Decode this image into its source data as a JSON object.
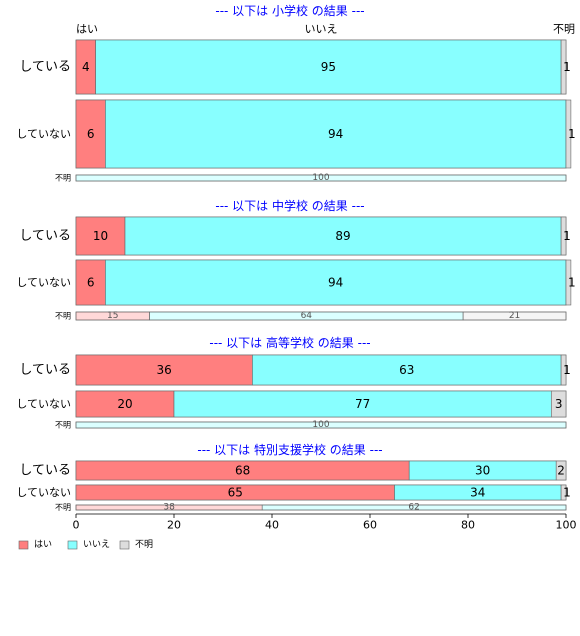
{
  "chart_data": {
    "type": "bar",
    "orientation": "horizontal",
    "stacked": "percent",
    "colors": {
      "yes": "#FF7F7F",
      "no": "#88FFFF",
      "unknown": "#DDDDDD",
      "title": "#0000FF"
    },
    "top_labels": [
      "はい",
      "いいえ",
      "不明"
    ],
    "legend": {
      "position": "bottom-left",
      "entries": [
        "はい",
        "いいえ",
        "不明"
      ]
    },
    "x_axis": {
      "ticks": [
        "0",
        "20",
        "40",
        "60",
        "80",
        "100"
      ],
      "range": [
        0,
        100
      ]
    },
    "panels": [
      {
        "title": "--- 以下は 小学校 の結果 ---",
        "rows": [
          {
            "label": "している",
            "values": [
              4,
              95,
              1
            ]
          },
          {
            "label": "していない",
            "values": [
              6,
              94,
              1
            ]
          },
          {
            "label": "不明",
            "values": [
              0,
              100,
              0
            ]
          }
        ]
      },
      {
        "title": "--- 以下は 中学校 の結果 ---",
        "rows": [
          {
            "label": "している",
            "values": [
              10,
              89,
              1
            ]
          },
          {
            "label": "していない",
            "values": [
              6,
              94,
              1
            ]
          },
          {
            "label": "不明",
            "values": [
              15,
              64,
              21
            ]
          }
        ]
      },
      {
        "title": "--- 以下は 高等学校 の結果 ---",
        "rows": [
          {
            "label": "している",
            "values": [
              36,
              63,
              1
            ]
          },
          {
            "label": "していない",
            "values": [
              20,
              77,
              3
            ]
          },
          {
            "label": "不明",
            "values": [
              0,
              100,
              0
            ]
          }
        ]
      },
      {
        "title": "--- 以下は 特別支援学校 の結果 ---",
        "rows": [
          {
            "label": "している",
            "values": [
              68,
              30,
              2
            ]
          },
          {
            "label": "していない",
            "values": [
              65,
              34,
              1
            ]
          },
          {
            "label": "不明",
            "values": [
              38,
              62,
              0
            ]
          }
        ]
      }
    ]
  }
}
